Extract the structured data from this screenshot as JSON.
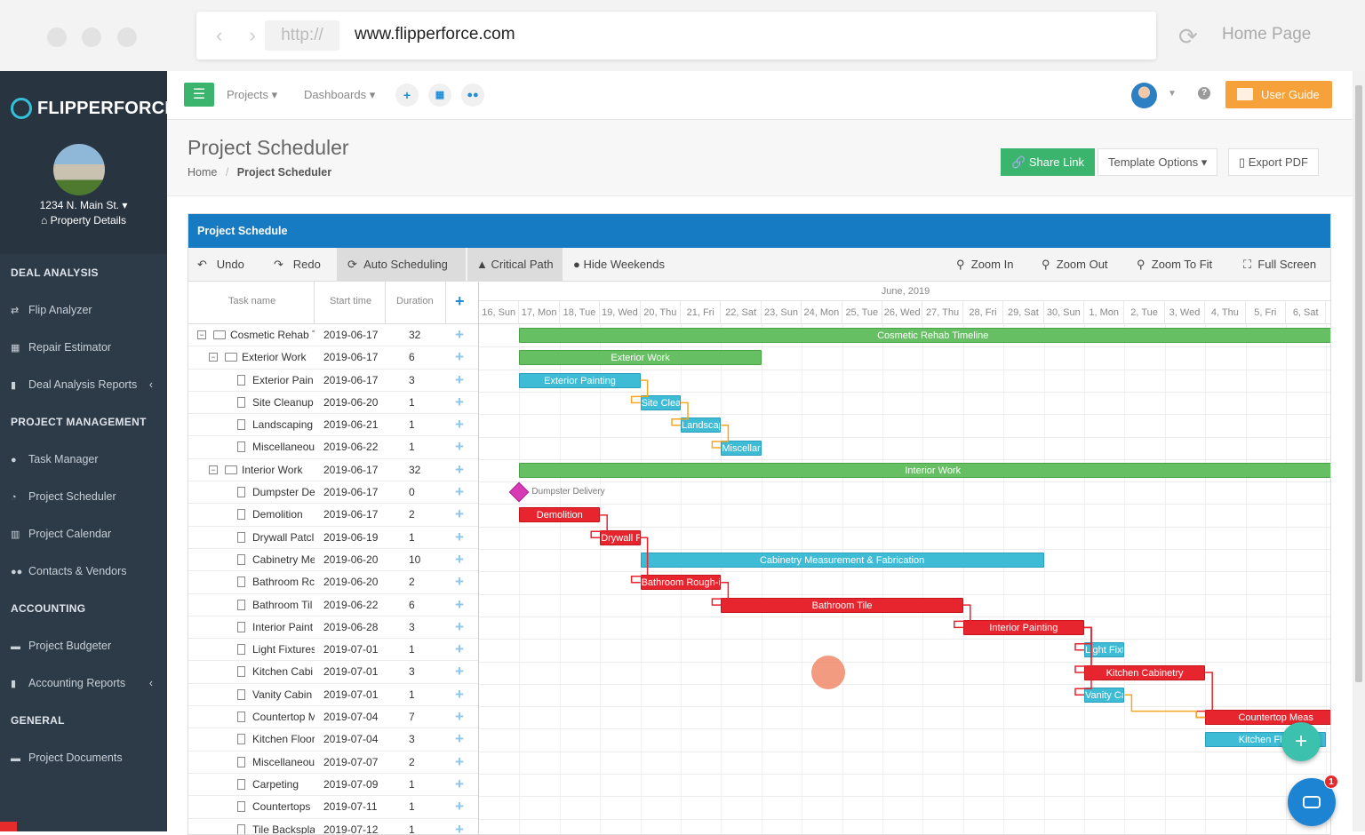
{
  "browser": {
    "url_scheme": "http://",
    "url": "www.flipperforce.com",
    "home_label": "Home Page"
  },
  "sidebar": {
    "brand": "FLIPPERFORCE",
    "property": {
      "address": "1234 N. Main St.",
      "details_label": "Property Details"
    },
    "sections": [
      {
        "heading": "DEAL ANALYSIS",
        "items": [
          {
            "label": "Flip Analyzer",
            "icon": "exchange-icon"
          },
          {
            "label": "Repair Estimator",
            "icon": "calculator-icon"
          },
          {
            "label": "Deal Analysis Reports",
            "icon": "document-icon",
            "chevron": true
          }
        ]
      },
      {
        "heading": "PROJECT MANAGEMENT",
        "items": [
          {
            "label": "Task Manager",
            "icon": "check-circle-icon"
          },
          {
            "label": "Project Scheduler",
            "icon": "clock-icon"
          },
          {
            "label": "Project Calendar",
            "icon": "calendar-icon"
          },
          {
            "label": "Contacts & Vendors",
            "icon": "users-icon"
          }
        ]
      },
      {
        "heading": "ACCOUNTING",
        "items": [
          {
            "label": "Project Budgeter",
            "icon": "money-icon"
          },
          {
            "label": "Accounting Reports",
            "icon": "document-icon",
            "chevron": true
          }
        ]
      },
      {
        "heading": "GENERAL",
        "items": [
          {
            "label": "Project Documents",
            "icon": "folder-icon"
          }
        ]
      }
    ]
  },
  "topbar": {
    "projects": "Projects",
    "dashboards": "Dashboards",
    "user_guide": "User Guide"
  },
  "page": {
    "title": "Project Scheduler",
    "breadcrumb": [
      "Home",
      "Project Scheduler"
    ],
    "share_link": "Share Link",
    "template_options": "Template Options",
    "export_pdf": "Export PDF"
  },
  "schedule": {
    "card_title": "Project Schedule",
    "toolbar": {
      "undo": "Undo",
      "redo": "Redo",
      "auto_scheduling": "Auto Scheduling",
      "critical_path": "Critical Path",
      "hide_weekends": "Hide Weekends",
      "zoom_in": "Zoom In",
      "zoom_out": "Zoom Out",
      "zoom_to_fit": "Zoom To Fit",
      "full_screen": "Full Screen"
    },
    "columns": {
      "task": "Task name",
      "start": "Start time",
      "duration": "Duration"
    },
    "month_label": "June, 2019",
    "days": [
      "16, Sun",
      "17, Mon",
      "18, Tue",
      "19, Wed",
      "20, Thu",
      "21, Fri",
      "22, Sat",
      "23, Sun",
      "24, Mon",
      "25, Tue",
      "26, Wed",
      "27, Thu",
      "28, Fri",
      "29, Sat",
      "30, Sun",
      "1, Mon",
      "2, Tue",
      "3, Wed",
      "4, Thu",
      "5, Fri",
      "6, Sat"
    ],
    "tasks": [
      {
        "name": "Cosmetic Rehab T",
        "start": "2019-06-17",
        "duration": "32",
        "level": 0,
        "group": true
      },
      {
        "name": "Exterior Work",
        "start": "2019-06-17",
        "duration": "6",
        "level": 1,
        "group": true
      },
      {
        "name": "Exterior Pain",
        "start": "2019-06-17",
        "duration": "3",
        "level": 2
      },
      {
        "name": "Site Cleanup",
        "start": "2019-06-20",
        "duration": "1",
        "level": 2
      },
      {
        "name": "Landscaping",
        "start": "2019-06-21",
        "duration": "1",
        "level": 2
      },
      {
        "name": "Miscellaneou",
        "start": "2019-06-22",
        "duration": "1",
        "level": 2
      },
      {
        "name": "Interior Work",
        "start": "2019-06-17",
        "duration": "32",
        "level": 1,
        "group": true
      },
      {
        "name": "Dumpster De",
        "start": "2019-06-17",
        "duration": "0",
        "level": 2
      },
      {
        "name": "Demolition",
        "start": "2019-06-17",
        "duration": "2",
        "level": 2
      },
      {
        "name": "Drywall Patcl",
        "start": "2019-06-19",
        "duration": "1",
        "level": 2
      },
      {
        "name": "Cabinetry Me",
        "start": "2019-06-20",
        "duration": "10",
        "level": 2
      },
      {
        "name": "Bathroom Rc",
        "start": "2019-06-20",
        "duration": "2",
        "level": 2
      },
      {
        "name": "Bathroom Til",
        "start": "2019-06-22",
        "duration": "6",
        "level": 2
      },
      {
        "name": "Interior Paint",
        "start": "2019-06-28",
        "duration": "3",
        "level": 2
      },
      {
        "name": "Light Fixtures",
        "start": "2019-07-01",
        "duration": "1",
        "level": 2
      },
      {
        "name": "Kitchen Cabi",
        "start": "2019-07-01",
        "duration": "3",
        "level": 2
      },
      {
        "name": "Vanity Cabin",
        "start": "2019-07-01",
        "duration": "1",
        "level": 2
      },
      {
        "name": "Countertop M",
        "start": "2019-07-04",
        "duration": "7",
        "level": 2
      },
      {
        "name": "Kitchen Floor",
        "start": "2019-07-04",
        "duration": "3",
        "level": 2
      },
      {
        "name": "Miscellaneou",
        "start": "2019-07-07",
        "duration": "2",
        "level": 2
      },
      {
        "name": "Carpeting",
        "start": "2019-07-09",
        "duration": "1",
        "level": 2
      },
      {
        "name": "Countertops",
        "start": "2019-07-11",
        "duration": "1",
        "level": 2
      },
      {
        "name": "Tile Backspla",
        "start": "2019-07-12",
        "duration": "1",
        "level": 2
      }
    ],
    "bars": [
      {
        "row": 0,
        "label": "Cosmetic Rehab Timeline",
        "start_day": 1,
        "days": 20.5,
        "color": "g"
      },
      {
        "row": 1,
        "label": "Exterior Work",
        "start_day": 1,
        "days": 6,
        "color": "g"
      },
      {
        "row": 2,
        "label": "Exterior Painting",
        "start_day": 1,
        "days": 3,
        "color": "b"
      },
      {
        "row": 3,
        "label": "Site Clea",
        "start_day": 4,
        "days": 1,
        "color": "b"
      },
      {
        "row": 4,
        "label": "Landscap",
        "start_day": 5,
        "days": 1,
        "color": "b"
      },
      {
        "row": 5,
        "label": "Miscellar",
        "start_day": 6,
        "days": 1,
        "color": "b"
      },
      {
        "row": 6,
        "label": "Interior Work",
        "start_day": 1,
        "days": 20.5,
        "color": "g"
      },
      {
        "row": 8,
        "label": "Demolition",
        "start_day": 1,
        "days": 2,
        "color": "r"
      },
      {
        "row": 9,
        "label": "Drywall F",
        "start_day": 3,
        "days": 1,
        "color": "r"
      },
      {
        "row": 10,
        "label": "Cabinetry Measurement & Fabrication",
        "start_day": 4,
        "days": 10,
        "color": "b"
      },
      {
        "row": 11,
        "label": "Bathroom Rough-i",
        "start_day": 4,
        "days": 2,
        "color": "r"
      },
      {
        "row": 12,
        "label": "Bathroom Tile",
        "start_day": 6,
        "days": 6,
        "color": "r"
      },
      {
        "row": 13,
        "label": "Interior Painting",
        "start_day": 12,
        "days": 3,
        "color": "r"
      },
      {
        "row": 14,
        "label": "Light Fixt",
        "start_day": 15,
        "days": 1,
        "color": "b"
      },
      {
        "row": 15,
        "label": "Kitchen Cabinetry",
        "start_day": 15,
        "days": 3,
        "color": "r"
      },
      {
        "row": 16,
        "label": "Vanity Ca",
        "start_day": 15,
        "days": 1,
        "color": "b"
      },
      {
        "row": 17,
        "label": "Countertop Meas",
        "start_day": 18,
        "days": 3.5,
        "color": "r"
      },
      {
        "row": 18,
        "label": "Kitchen Floo",
        "start_day": 18,
        "days": 3,
        "color": "b"
      }
    ],
    "milestone": {
      "row": 7,
      "label": "Dumpster Delivery",
      "day": 1
    }
  },
  "chat": {
    "badge": "1"
  }
}
